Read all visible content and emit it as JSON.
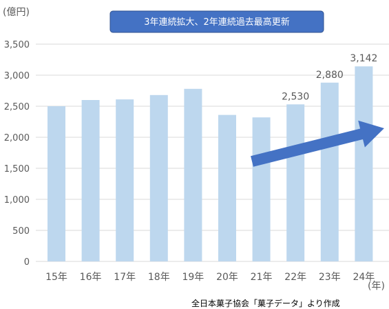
{
  "chart_data": {
    "type": "bar",
    "y_unit": "(億円)",
    "x_unit": "(年)",
    "categories": [
      "15年",
      "16年",
      "17年",
      "18年",
      "19年",
      "20年",
      "21年",
      "22年",
      "23年",
      "24年"
    ],
    "values": [
      2500,
      2600,
      2610,
      2680,
      2780,
      2360,
      2320,
      2530,
      2880,
      3142
    ],
    "data_labels": [
      {
        "index": 7,
        "text": "2,530"
      },
      {
        "index": 8,
        "text": "2,880"
      },
      {
        "index": 9,
        "text": "3,142"
      }
    ],
    "ylim": [
      0,
      3500
    ],
    "y_ticks": [
      "0",
      "500",
      "1,000",
      "1,500",
      "2,000",
      "2,500",
      "3,000",
      "3,500"
    ],
    "grid": true,
    "annotation": "3年連続拡大、2年連続過去最高更新",
    "trend_arrow": true,
    "source_note": "全日本菓子協会「菓子データ」より作成",
    "colors": {
      "bar": "#bdd7ee",
      "grid": "#d9d9d9",
      "axis_text": "#595959",
      "banner_fill": "#4472c4",
      "banner_border": "#2f528f",
      "arrow": "#4472c4"
    }
  }
}
